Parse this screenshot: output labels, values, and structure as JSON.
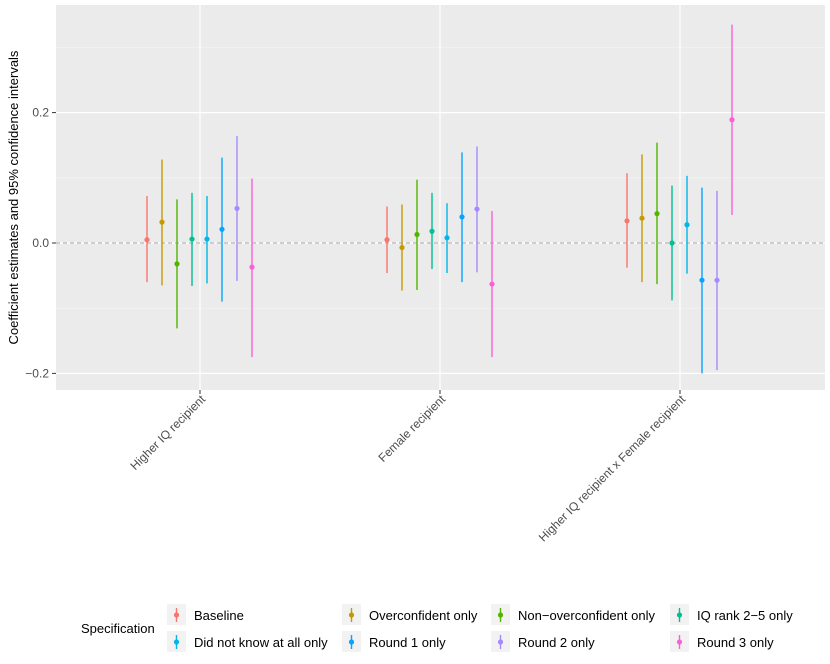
{
  "chart_data": {
    "type": "errorbar",
    "title": "",
    "xlabel": "",
    "ylabel": "Coefficient estimates and 95% confidence intervals",
    "ylim": [
      -0.225,
      0.36
    ],
    "yticks": [
      -0.2,
      0.0,
      0.2
    ],
    "ytick_labels": [
      "−0.2",
      "0.0",
      "0.2"
    ],
    "reference_line": 0.0,
    "categories": [
      "Higher IQ recipient",
      "Female recipient",
      "Higher IQ recipient x Female recipient"
    ],
    "legend_title": "Specification",
    "series": [
      {
        "name": "Baseline",
        "color": "#F8766D",
        "estimates": [
          0.005,
          0.005,
          0.034
        ],
        "lower": [
          -0.06,
          -0.046,
          -0.038
        ],
        "upper": [
          0.072,
          0.056,
          0.107
        ]
      },
      {
        "name": "Overconfident only",
        "color": "#C49A00",
        "estimates": [
          0.032,
          -0.007,
          0.038
        ],
        "lower": [
          -0.065,
          -0.073,
          -0.06
        ],
        "upper": [
          0.128,
          0.059,
          0.136
        ]
      },
      {
        "name": "Non−overconfident only",
        "color": "#53B400",
        "estimates": [
          -0.032,
          0.013,
          0.045
        ],
        "lower": [
          -0.131,
          -0.072,
          -0.063
        ],
        "upper": [
          0.067,
          0.097,
          0.154
        ]
      },
      {
        "name": "IQ rank 2−5 only",
        "color": "#00C094",
        "estimates": [
          0.006,
          0.018,
          0.0
        ],
        "lower": [
          -0.066,
          -0.04,
          -0.088
        ],
        "upper": [
          0.077,
          0.077,
          0.088
        ]
      },
      {
        "name": "Did not know at all only",
        "color": "#00B6EB",
        "estimates": [
          0.006,
          0.008,
          0.028
        ],
        "lower": [
          -0.062,
          -0.046,
          -0.047
        ],
        "upper": [
          0.072,
          0.061,
          0.103
        ]
      },
      {
        "name": "Round 1 only",
        "color": "#06A4FF",
        "estimates": [
          0.021,
          0.04,
          -0.057
        ],
        "lower": [
          -0.09,
          -0.06,
          -0.2
        ],
        "upper": [
          0.131,
          0.139,
          0.085
        ]
      },
      {
        "name": "Round 2 only",
        "color": "#A58AFF",
        "estimates": [
          0.053,
          0.052,
          -0.057
        ],
        "lower": [
          -0.058,
          -0.045,
          -0.195
        ],
        "upper": [
          0.164,
          0.148,
          0.08
        ]
      },
      {
        "name": "Round 3 only",
        "color": "#FB61D7",
        "estimates": [
          -0.037,
          -0.063,
          0.189
        ],
        "lower": [
          -0.175,
          -0.175,
          0.043
        ],
        "upper": [
          0.099,
          0.049,
          0.335
        ]
      }
    ],
    "legend_order": [
      [
        "Baseline",
        "Overconfident only",
        "Non−overconfident only",
        "IQ rank 2−5 only"
      ],
      [
        "Did not know at all only",
        "Round 1 only",
        "Round 2 only",
        "Round 3 only"
      ]
    ]
  }
}
